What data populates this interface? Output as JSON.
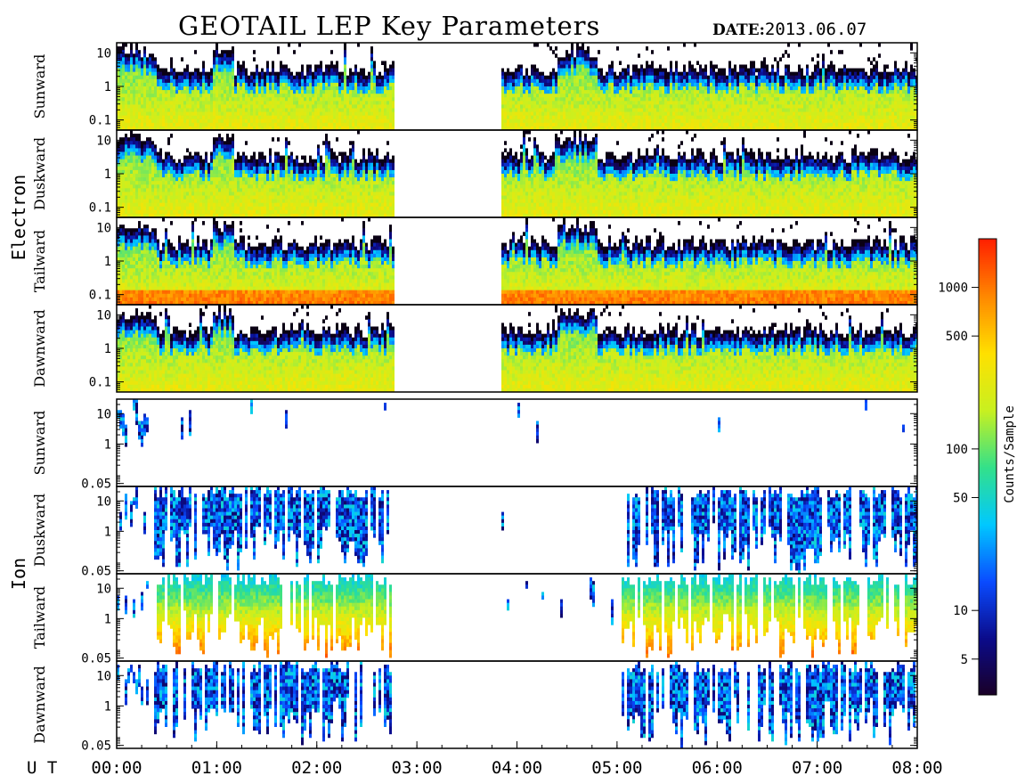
{
  "header": {
    "title": "GEOTAIL LEP Key Parameters",
    "date_label": "DATE:",
    "date_value": "2013.06.07"
  },
  "colors": {
    "bad": "#ffffff",
    "colormap": [
      "#1a0026",
      "#0b0b8a",
      "#0a4bff",
      "#00c8ff",
      "#33e08a",
      "#c8f020",
      "#ffe000",
      "#ff8800",
      "#ff2000"
    ]
  },
  "chart_data": {
    "type": "heatmap",
    "title": "GEOTAIL LEP Key Parameters",
    "xlabel": "U T",
    "x_ticks": [
      "00:00",
      "01:00",
      "02:00",
      "03:00",
      "04:00",
      "05:00",
      "06:00",
      "07:00",
      "08:00"
    ],
    "xlim_hours": [
      0,
      8
    ],
    "data_gaps_hours": [
      [
        2.75,
        3.82
      ]
    ],
    "groups": [
      {
        "name": "Electron",
        "panels": [
          {
            "label": "Sunward",
            "y_ticks": [
              "10",
              "1",
              "0.1"
            ],
            "ylim": [
              0.05,
              20
            ],
            "y_scale": "log"
          },
          {
            "label": "Duskward",
            "y_ticks": [
              "10",
              "1",
              "0.1"
            ],
            "ylim": [
              0.05,
              20
            ],
            "y_scale": "log"
          },
          {
            "label": "Tailward",
            "y_ticks": [
              "10",
              "1",
              "0.1"
            ],
            "ylim": [
              0.05,
              20
            ],
            "y_scale": "log"
          },
          {
            "label": "Dawnward",
            "y_ticks": [
              "10",
              "1",
              "0.1"
            ],
            "ylim": [
              0.05,
              20
            ],
            "y_scale": "log"
          }
        ]
      },
      {
        "name": "Ion",
        "panels": [
          {
            "label": "Sunward",
            "y_ticks": [
              "10",
              "1",
              "0.05"
            ],
            "ylim": [
              0.04,
              30
            ],
            "y_scale": "log"
          },
          {
            "label": "Duskward",
            "y_ticks": [
              "10",
              "1",
              "0.05"
            ],
            "ylim": [
              0.04,
              30
            ],
            "y_scale": "log"
          },
          {
            "label": "Tailward",
            "y_ticks": [
              "10",
              "1",
              "0.05"
            ],
            "ylim": [
              0.04,
              30
            ],
            "y_scale": "log"
          },
          {
            "label": "Dawnward",
            "y_ticks": [
              "10",
              "1",
              "0.05"
            ],
            "ylim": [
              0.04,
              30
            ],
            "y_scale": "log"
          }
        ]
      }
    ],
    "colorbar": {
      "label": "Counts/Sample",
      "scale": "log",
      "range": [
        3,
        2000
      ],
      "ticks": [
        "1000",
        "500",
        "100",
        "50",
        "10",
        "5"
      ]
    }
  }
}
